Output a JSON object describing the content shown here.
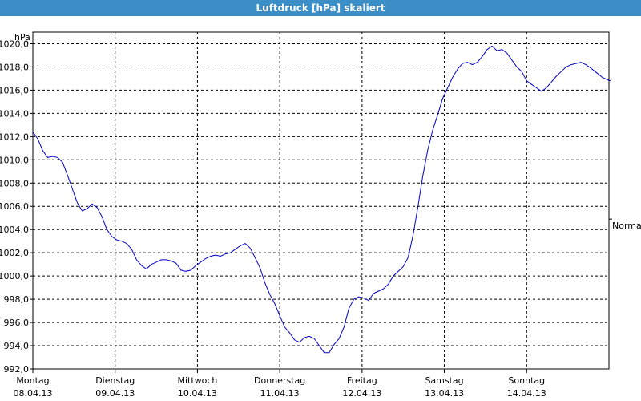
{
  "window": {
    "title": "Luftdruck [hPa] skaliert"
  },
  "chart_data": {
    "type": "line",
    "title": "Luftdruck [hPa] skaliert",
    "ylabel": "hPa",
    "ylim": [
      992,
      1021
    ],
    "xlim": [
      0,
      7
    ],
    "grid": true,
    "right_label": "Normal",
    "normal_value": 1004.9,
    "line_color": "#0000cc",
    "yticks": [
      "1020,0",
      "1018,0",
      "1016,0",
      "1014,0",
      "1012,0",
      "1010,0",
      "1008,0",
      "1006,0",
      "1004,0",
      "1002,0",
      "1000,0",
      "998,0",
      "996,0",
      "994,0",
      "992,0"
    ],
    "ytick_values": [
      1020,
      1018,
      1016,
      1014,
      1012,
      1010,
      1008,
      1006,
      1004,
      1002,
      1000,
      998,
      996,
      994,
      992
    ],
    "xticks": [
      {
        "day": "Montag",
        "date": "08.04.13"
      },
      {
        "day": "Dienstag",
        "date": "09.04.13"
      },
      {
        "day": "Mittwoch",
        "date": "10.04.13"
      },
      {
        "day": "Donnerstag",
        "date": "11.04.13"
      },
      {
        "day": "Freitag",
        "date": "12.04.13"
      },
      {
        "day": "Samstag",
        "date": "13.04.13"
      },
      {
        "day": "Sonntag",
        "date": "14.04.13"
      }
    ],
    "series": [
      {
        "x": [
          0,
          0.06,
          0.12,
          0.18,
          0.24,
          0.3,
          0.36,
          0.42,
          0.48,
          0.54,
          0.6,
          0.66,
          0.72,
          0.78,
          0.84,
          0.9,
          0.96,
          1.02,
          1.08,
          1.14,
          1.2,
          1.26,
          1.32,
          1.38,
          1.44,
          1.5,
          1.56,
          1.62,
          1.68,
          1.74,
          1.8,
          1.86,
          1.92,
          1.98,
          2.04,
          2.1,
          2.16,
          2.22,
          2.28,
          2.34,
          2.4,
          2.46,
          2.52,
          2.58,
          2.64,
          2.7,
          2.76,
          2.82,
          2.88,
          2.94,
          3.0,
          3.06,
          3.12,
          3.18,
          3.24,
          3.3,
          3.36,
          3.42,
          3.48,
          3.54,
          3.6,
          3.66,
          3.72,
          3.78,
          3.84,
          3.9,
          3.96,
          4.02,
          4.08,
          4.14,
          4.2,
          4.26,
          4.32,
          4.38,
          4.44,
          4.5,
          4.56,
          4.62,
          4.68,
          4.74,
          4.8,
          4.86,
          4.92,
          4.98,
          5.04,
          5.1,
          5.16,
          5.22,
          5.28,
          5.34,
          5.4,
          5.46,
          5.52,
          5.58,
          5.64,
          5.7,
          5.76,
          5.82,
          5.88,
          5.94,
          6.0,
          6.06,
          6.12,
          6.18,
          6.24,
          6.3,
          6.36,
          6.42,
          6.48,
          6.54,
          6.6,
          6.66,
          6.72,
          6.78,
          6.85,
          6.92,
          6.98,
          7.02
        ],
        "y": [
          1012.4,
          1011.8,
          1010.8,
          1010.2,
          1010.3,
          1010.2,
          1009.8,
          1008.7,
          1007.5,
          1006.3,
          1005.6,
          1005.8,
          1006.2,
          1005.9,
          1005.1,
          1004.0,
          1003.4,
          1003.1,
          1003.0,
          1002.8,
          1002.3,
          1001.4,
          1000.9,
          1000.6,
          1001.0,
          1001.2,
          1001.4,
          1001.4,
          1001.3,
          1001.1,
          1000.5,
          1000.4,
          1000.5,
          1000.9,
          1001.2,
          1001.5,
          1001.7,
          1001.8,
          1001.7,
          1001.9,
          1002.0,
          1002.3,
          1002.6,
          1002.8,
          1002.4,
          1001.6,
          1000.7,
          999.4,
          998.4,
          997.6,
          996.6,
          995.6,
          995.1,
          994.5,
          994.3,
          994.7,
          994.8,
          994.6,
          994.0,
          993.4,
          993.4,
          994.1,
          994.6,
          995.6,
          997.2,
          998.0,
          998.2,
          998.1,
          997.9,
          998.5,
          998.7,
          998.9,
          999.3,
          1000.0,
          1000.4,
          1000.8,
          1001.6,
          1003.5,
          1006.0,
          1008.7,
          1010.9,
          1012.6,
          1013.9,
          1015.3,
          1016.2,
          1017.1,
          1017.8,
          1018.3,
          1018.4,
          1018.2,
          1018.4,
          1018.9,
          1019.5,
          1019.8,
          1019.4,
          1019.5,
          1019.2,
          1018.6,
          1018.0,
          1017.6,
          1016.8,
          1016.5,
          1016.2,
          1015.9,
          1016.2,
          1016.7,
          1017.2,
          1017.6,
          1018.0,
          1018.2,
          1018.3,
          1018.4,
          1018.2,
          1017.9,
          1017.5,
          1017.1,
          1016.9,
          1016.8
        ],
        "color": "#0000cc"
      }
    ]
  }
}
